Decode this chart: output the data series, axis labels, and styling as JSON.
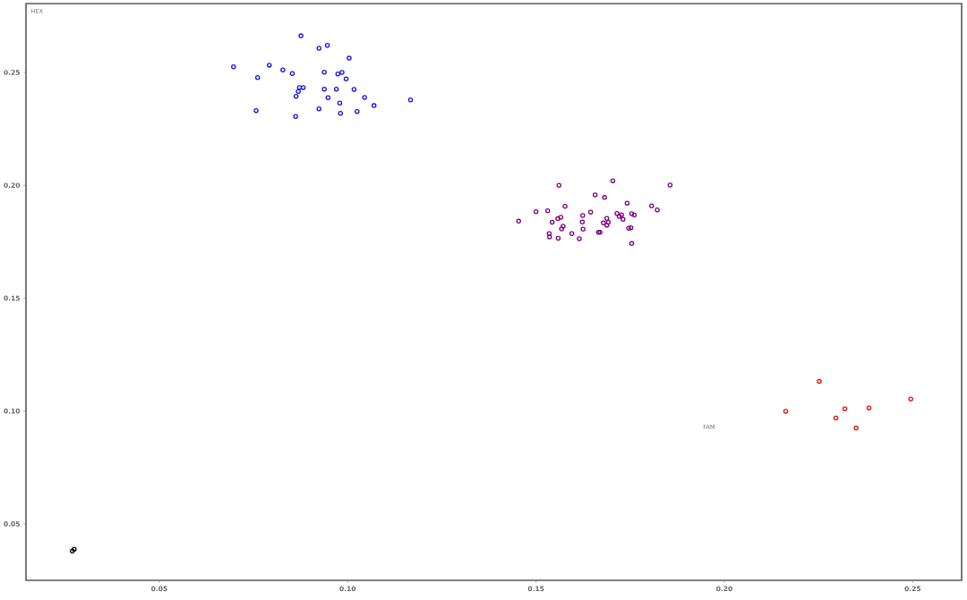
{
  "chart_data": {
    "type": "scatter",
    "xlabel": "FAM",
    "ylabel": "HEX",
    "marker": "circle",
    "grid": false,
    "xlim": [
      0.0146,
      0.263
    ],
    "ylim": [
      0.025,
      0.2805
    ],
    "xticks": [
      {
        "value": 0.05,
        "label": "0.05"
      },
      {
        "value": 0.1,
        "label": "0.10"
      },
      {
        "value": 0.15,
        "label": "0.15"
      },
      {
        "value": 0.2,
        "label": "0.20"
      },
      {
        "value": 0.25,
        "label": "0.25"
      }
    ],
    "yticks": [
      {
        "value": 0.05,
        "label": "0.05"
      },
      {
        "value": 0.1,
        "label": "0.10"
      },
      {
        "value": 0.15,
        "label": "0.15"
      },
      {
        "value": 0.2,
        "label": "0.20"
      },
      {
        "value": 0.25,
        "label": "0.25"
      }
    ],
    "series": [
      {
        "color": "#1414e0",
        "x": [
          0.0876,
          0.0924,
          0.0946,
          0.1004,
          0.0697,
          0.0792,
          0.0828,
          0.0853,
          0.0761,
          0.0938,
          0.0974,
          0.0985,
          0.0996,
          0.0872,
          0.0882,
          0.0869,
          0.0863,
          0.0938,
          0.097,
          0.1017,
          0.0948,
          0.1045,
          0.0979,
          0.107,
          0.1167,
          0.0757,
          0.0924,
          0.0981,
          0.1025,
          0.0862
        ],
        "values": [
          0.2662,
          0.2607,
          0.262,
          0.2563,
          0.2525,
          0.2532,
          0.2511,
          0.2495,
          0.2477,
          0.2501,
          0.2493,
          0.25,
          0.2471,
          0.2433,
          0.2433,
          0.2416,
          0.2394,
          0.2426,
          0.2426,
          0.2425,
          0.2388,
          0.2389,
          0.2364,
          0.2353,
          0.2378,
          0.2331,
          0.2339,
          0.2319,
          0.2327,
          0.2305
        ]
      },
      {
        "color": "#800080",
        "x": [
          0.1561,
          0.1704,
          0.1856,
          0.1657,
          0.1682,
          0.1742,
          0.1577,
          0.1807,
          0.1822,
          0.15,
          0.1531,
          0.1645,
          0.1454,
          0.1558,
          0.1566,
          0.1624,
          0.1715,
          0.1727,
          0.1721,
          0.1731,
          0.1754,
          0.1761,
          0.1688,
          0.1543,
          0.1623,
          0.1679,
          0.1692,
          0.1688,
          0.1572,
          0.1568,
          0.1625,
          0.1746,
          0.1752,
          0.1535,
          0.1536,
          0.1595,
          0.1666,
          0.167,
          0.1559,
          0.1615,
          0.1754
        ],
        "values": [
          0.2,
          0.202,
          0.2001,
          0.1957,
          0.1946,
          0.1921,
          0.1907,
          0.1909,
          0.1891,
          0.1883,
          0.1887,
          0.1881,
          0.1841,
          0.1852,
          0.1858,
          0.1866,
          0.1875,
          0.1869,
          0.1862,
          0.1849,
          0.1874,
          0.1868,
          0.1853,
          0.1836,
          0.1837,
          0.1833,
          0.1836,
          0.1823,
          0.1819,
          0.1807,
          0.1806,
          0.181,
          0.1812,
          0.1786,
          0.1771,
          0.1786,
          0.1792,
          0.1792,
          0.1765,
          0.1763,
          0.1742
        ]
      },
      {
        "color": "#e01010",
        "x": [
          0.2252,
          0.2495,
          0.2163,
          0.232,
          0.2384,
          0.2296,
          0.235
        ],
        "values": [
          0.1131,
          0.1053,
          0.0999,
          0.101,
          0.1014,
          0.0969,
          0.0924
        ]
      },
      {
        "color": "#000000",
        "x": [
          0.0269,
          0.0274
        ],
        "values": [
          0.038,
          0.0388
        ]
      }
    ]
  }
}
